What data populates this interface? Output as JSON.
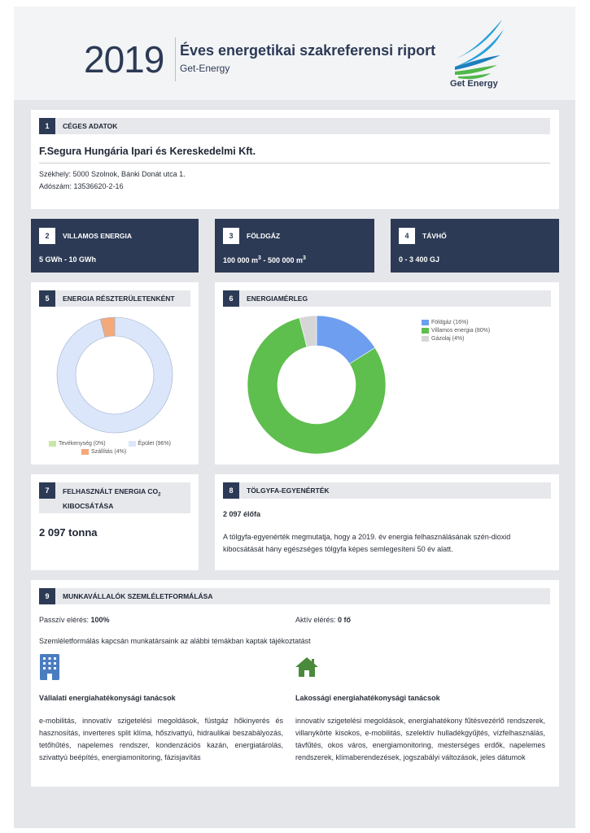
{
  "header": {
    "year": "2019",
    "title": "Éves energetikai szakreferensi riport",
    "subtitle": "Get-Energy",
    "logo_text": "Get Energy"
  },
  "company": {
    "num": "1",
    "section_title": "CÉGES ADATOK",
    "name": "F.Segura Hungária Ipari és Kereskedelmi Kft.",
    "address": "Székhely: 5000 Szolnok, Bánki Donát utca 1.",
    "tax": "Adószám: 13536620-2-16"
  },
  "electricity": {
    "num": "2",
    "title": "VILLAMOS ENERGIA",
    "value": "5 GWh - 10 GWh"
  },
  "gas": {
    "num": "3",
    "title": "FÖLDGÁZ",
    "value_a": "100 000 m",
    "sup_a": "3",
    "value_b": " - 500 000 m",
    "sup_b": "3"
  },
  "heat": {
    "num": "4",
    "title": "TÁVHŐ",
    "value": "0 - 3 400 GJ"
  },
  "chart_data": [
    {
      "type": "pie",
      "section_num": "5",
      "title": "ENERGIA RÉSZTERÜLETENKÉNT",
      "series": [
        {
          "name": "Tevékenység (0%)",
          "value": 0,
          "color": "#c9e6a8"
        },
        {
          "name": "Épület (96%)",
          "value": 96,
          "color": "#dbe6fb"
        },
        {
          "name": "Szállítás (4%)",
          "value": 4,
          "color": "#f3a97a"
        }
      ],
      "legend": "bottom"
    },
    {
      "type": "pie",
      "section_num": "6",
      "title": "ENERGIAMÉRLEG",
      "series": [
        {
          "name": "Földgáz (16%)",
          "value": 16,
          "color": "#6d9ef0"
        },
        {
          "name": "Villamos energia (80%)",
          "value": 80,
          "color": "#5ebe4e"
        },
        {
          "name": "Gázolaj (4%)",
          "value": 4,
          "color": "#d6d6d6"
        }
      ],
      "legend": "top-right"
    }
  ],
  "co2": {
    "num": "7",
    "title_a": "FELHASZNÁLT ENERGIA CO",
    "title_sub": "2",
    "title_b": "KIBOCSÁTÁSA",
    "value": "2 097 tonna"
  },
  "oak": {
    "num": "8",
    "title": "TÖLGYFA-EGYENÉRTÉK",
    "value": "2 097 élőfa",
    "desc": "A tölgyfa-egyenérték megmutatja, hogy a 2019. év energia felhasználásának szén-dioxid kibocsátását hány egészséges tölgyfa képes semlegesíteni 50 év alatt."
  },
  "awareness": {
    "num": "9",
    "title": "MUNKAVÁLLALÓK SZEMLÉLETFORMÁLÁSA",
    "passive_label": "Passzív elérés: ",
    "passive_value": "100%",
    "active_label": "Aktív elérés: ",
    "active_value": "0 fő",
    "intro": "Szemléletformálás kapcsán munkatársaink az alábbi témákban kaptak tájékoztatást",
    "corporate_icon": "office-building-icon",
    "corporate_title": "Vállalati energiahatékonysági tanácsok",
    "corporate_text": "e-mobilitás, innovatív szigetelési megoldások, füstgáz hőkinyerés és hasznosítás, inverteres split klíma, hőszivattyú, hidraulikai beszabályozás, tetőhűtés, napelemes rendszer, kondenzációs kazán, energiatárolás, szivattyú beépítés, energiamonitoring, fázisjavítás",
    "household_icon": "house-icon",
    "household_title": "Lakossági energiahatékonysági tanácsok",
    "household_text": "innovatív szigetelési megoldások, energiahatékony fűtésvezérlő rendszerek, villanykörte kisokos, e-mobilitás, szelektív hulladékgyűjtés, vízfelhasználás, távfűtés, okos város, energiamonitoring, mesterséges erdők, napelemes rendszerek, klímaberendezések, jogszabályi változások, jeles dátumok",
    "icon_color": "#4a7cc0",
    "house_color": "#4a8a3c"
  }
}
